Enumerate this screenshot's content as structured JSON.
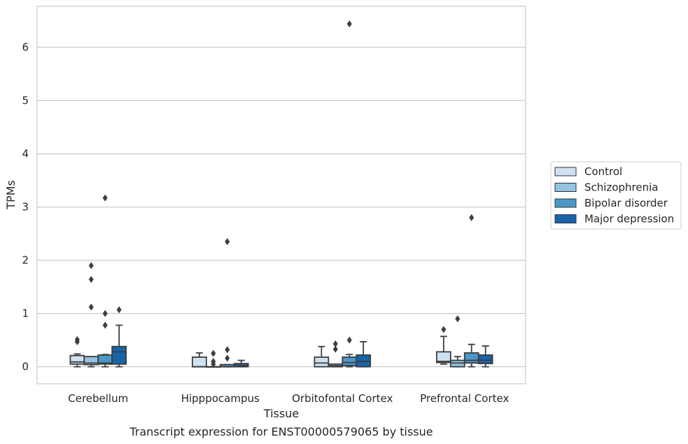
{
  "chart_data": {
    "type": "boxplot",
    "caption": "Transcript expression for ENST00000579065 by tissue",
    "xlabel": "Tissue",
    "ylabel": "TPMs",
    "ylim": [
      -0.32,
      6.77
    ],
    "yticks": [
      0,
      1,
      2,
      3,
      4,
      5,
      6
    ],
    "grid": "horizontal",
    "legend_position": "right",
    "categories": [
      "Cerebellum",
      "Hipppocampus",
      "Orbitofontal Cortex",
      "Prefrontal Cortex"
    ],
    "series": [
      {
        "name": "Control",
        "color": "#d0e1f2",
        "boxes": [
          {
            "whislo": 0.0,
            "q1": 0.05,
            "med": 0.09,
            "q3": 0.21,
            "whishi": 0.24,
            "fliers": [
              0.47,
              0.51
            ]
          },
          {
            "whislo": 0.0,
            "q1": 0.0,
            "med": 0.0,
            "q3": 0.18,
            "whishi": 0.26,
            "fliers": []
          },
          {
            "whislo": 0.0,
            "q1": 0.0,
            "med": 0.07,
            "q3": 0.18,
            "whishi": 0.38,
            "fliers": []
          },
          {
            "whislo": 0.05,
            "q1": 0.08,
            "med": 0.1,
            "q3": 0.28,
            "whishi": 0.57,
            "fliers": [
              0.7
            ]
          }
        ]
      },
      {
        "name": "Schizophrenia",
        "color": "#94c4df",
        "boxes": [
          {
            "whislo": 0.0,
            "q1": 0.04,
            "med": 0.07,
            "q3": 0.19,
            "whishi": 0.19,
            "fliers": [
              1.12,
              1.64,
              1.9
            ]
          },
          {
            "whislo": 0.0,
            "q1": 0.0,
            "med": 0.0,
            "q3": 0.0,
            "whishi": 0.0,
            "fliers": [
              0.05,
              0.1,
              0.25
            ]
          },
          {
            "whislo": 0.0,
            "q1": 0.0,
            "med": 0.02,
            "q3": 0.05,
            "whishi": 0.05,
            "fliers": [
              0.33,
              0.43
            ]
          },
          {
            "whislo": 0.0,
            "q1": 0.0,
            "med": 0.07,
            "q3": 0.12,
            "whishi": 0.19,
            "fliers": [
              0.9
            ]
          }
        ]
      },
      {
        "name": "Bipolar disorder",
        "color": "#4a98c9",
        "boxes": [
          {
            "whislo": 0.0,
            "q1": 0.05,
            "med": 0.07,
            "q3": 0.22,
            "whishi": 0.23,
            "fliers": [
              0.78,
              1.0,
              3.17
            ]
          },
          {
            "whislo": 0.0,
            "q1": 0.0,
            "med": 0.0,
            "q3": 0.04,
            "whishi": 0.04,
            "fliers": [
              0.16,
              0.32,
              2.35
            ]
          },
          {
            "whislo": 0.0,
            "q1": 0.02,
            "med": 0.08,
            "q3": 0.18,
            "whishi": 0.23,
            "fliers": [
              0.5,
              6.44
            ]
          },
          {
            "whislo": 0.0,
            "q1": 0.07,
            "med": 0.12,
            "q3": 0.26,
            "whishi": 0.42,
            "fliers": [
              2.8
            ]
          }
        ]
      },
      {
        "name": "Major depression",
        "color": "#1764ab",
        "boxes": [
          {
            "whislo": 0.0,
            "q1": 0.05,
            "med": 0.28,
            "q3": 0.38,
            "whishi": 0.78,
            "fliers": [
              1.07
            ]
          },
          {
            "whislo": 0.0,
            "q1": 0.0,
            "med": 0.02,
            "q3": 0.06,
            "whishi": 0.12,
            "fliers": []
          },
          {
            "whislo": 0.0,
            "q1": 0.0,
            "med": 0.1,
            "q3": 0.22,
            "whishi": 0.47,
            "fliers": []
          },
          {
            "whislo": 0.0,
            "q1": 0.06,
            "med": 0.12,
            "q3": 0.22,
            "whishi": 0.39,
            "fliers": []
          }
        ]
      }
    ]
  }
}
